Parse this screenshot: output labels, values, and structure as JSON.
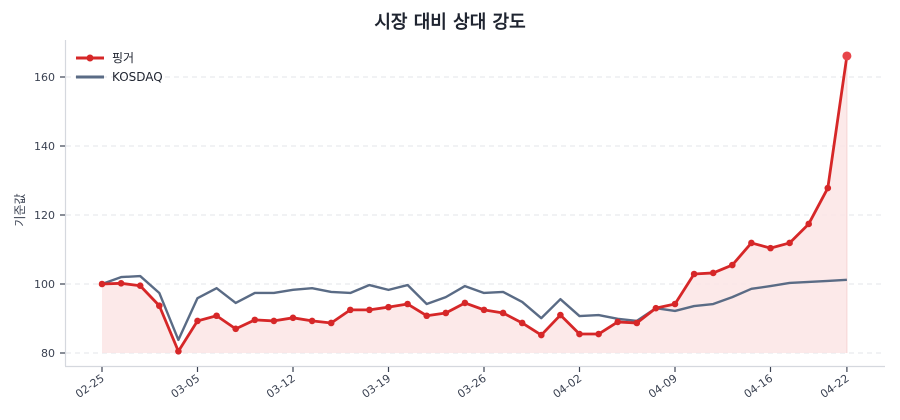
{
  "chart_data": {
    "type": "line",
    "title": "시장 대비 상대 강도",
    "xlabel": "",
    "ylabel": "기준값",
    "ylim": [
      77,
      171
    ],
    "yticks": [
      80,
      100,
      120,
      140,
      160
    ],
    "grid": "horizontal dashed",
    "legend_position": "upper left",
    "x": [
      "02-25",
      "02-26",
      "02-27",
      "02-28",
      "03-04",
      "03-05",
      "03-06",
      "03-07",
      "03-10",
      "03-11",
      "03-12",
      "03-13",
      "03-14",
      "03-17",
      "03-18",
      "03-19",
      "03-20",
      "03-21",
      "03-24",
      "03-25",
      "03-26",
      "03-27",
      "03-28",
      "03-31",
      "04-01",
      "04-02",
      "04-03",
      "04-04",
      "04-07",
      "04-08",
      "04-09",
      "04-10",
      "04-11",
      "04-14",
      "04-15",
      "04-16",
      "04-17",
      "04-18",
      "04-21",
      "04-22"
    ],
    "xtick_labels": [
      "02-25",
      "03-05",
      "03-12",
      "03-19",
      "03-26",
      "04-02",
      "04-09",
      "04-16",
      "04-22"
    ],
    "xtick_indices": [
      0,
      5,
      10,
      15,
      20,
      25,
      30,
      35,
      39
    ],
    "series": [
      {
        "name": "핑거",
        "color": "#d62728",
        "marker": "circle",
        "fill": "#fbe5e5",
        "values": [
          100.0,
          100.2,
          99.5,
          93.7,
          80.5,
          89.3,
          90.8,
          87.0,
          89.6,
          89.3,
          90.2,
          89.3,
          88.7,
          92.5,
          92.5,
          93.3,
          94.2,
          90.8,
          91.6,
          94.5,
          92.5,
          91.6,
          88.7,
          85.2,
          91.0,
          85.5,
          85.5,
          89.0,
          88.7,
          93.0,
          94.2,
          102.9,
          103.2,
          105.5,
          111.9,
          110.4,
          111.9,
          117.4,
          127.8,
          166.1
        ]
      },
      {
        "name": "KOSDAQ",
        "color": "#5a6b85",
        "marker": "none",
        "values": [
          100.0,
          102.0,
          102.3,
          97.4,
          83.8,
          95.9,
          98.8,
          94.5,
          97.4,
          97.4,
          98.3,
          98.8,
          97.7,
          97.4,
          99.7,
          98.3,
          99.7,
          94.2,
          96.2,
          99.4,
          97.4,
          97.7,
          94.8,
          90.1,
          95.6,
          90.7,
          91.0,
          89.9,
          89.3,
          93.0,
          92.2,
          93.6,
          94.2,
          96.2,
          98.6,
          99.4,
          100.3,
          100.6,
          100.9,
          101.2
        ]
      }
    ]
  },
  "legend": {
    "items": [
      {
        "label": "핑거"
      },
      {
        "label": "KOSDAQ"
      }
    ]
  }
}
